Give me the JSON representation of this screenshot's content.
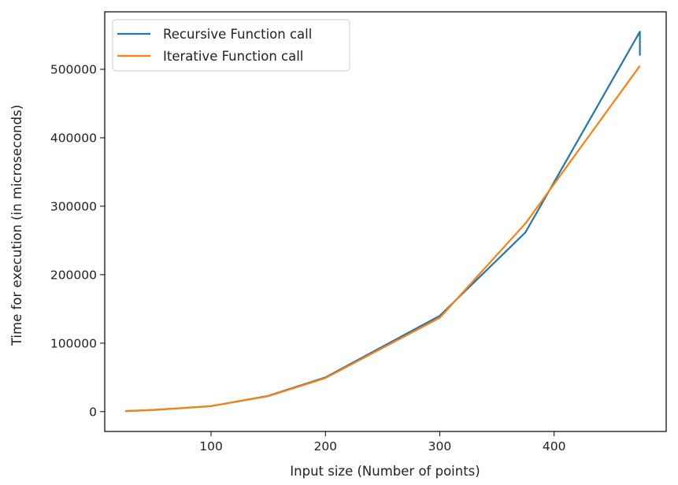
{
  "chart_data": {
    "type": "line",
    "title": "",
    "xlabel": "Input size (Number of points)",
    "ylabel": "Time for execution (in microseconds)",
    "xlim": [
      7,
      498
    ],
    "ylim": [
      -29000,
      584000
    ],
    "xticks": [
      100,
      200,
      300,
      400
    ],
    "yticks": [
      0,
      100000,
      200000,
      300000,
      400000,
      500000
    ],
    "xtick_labels": [
      "100",
      "200",
      "300",
      "400"
    ],
    "ytick_labels": [
      "0",
      "100000",
      "200000",
      "300000",
      "400000",
      "500000"
    ],
    "grid": false,
    "legend_position": "top-left",
    "series": [
      {
        "name": "Recursive Function call",
        "color": "#1f77b4",
        "points": [
          [
            25,
            800
          ],
          [
            50,
            2500
          ],
          [
            100,
            8000
          ],
          [
            150,
            23000
          ],
          [
            200,
            50000
          ],
          [
            300,
            140000
          ],
          [
            375,
            262000
          ],
          [
            475,
            555000
          ],
          [
            475,
            520000
          ]
        ]
      },
      {
        "name": "Iterative Function call",
        "color": "#ff7f0e",
        "points": [
          [
            25,
            800
          ],
          [
            50,
            2300
          ],
          [
            100,
            8000
          ],
          [
            150,
            22500
          ],
          [
            200,
            49000
          ],
          [
            300,
            137000
          ],
          [
            375,
            275000
          ],
          [
            475,
            505000
          ]
        ]
      }
    ]
  }
}
